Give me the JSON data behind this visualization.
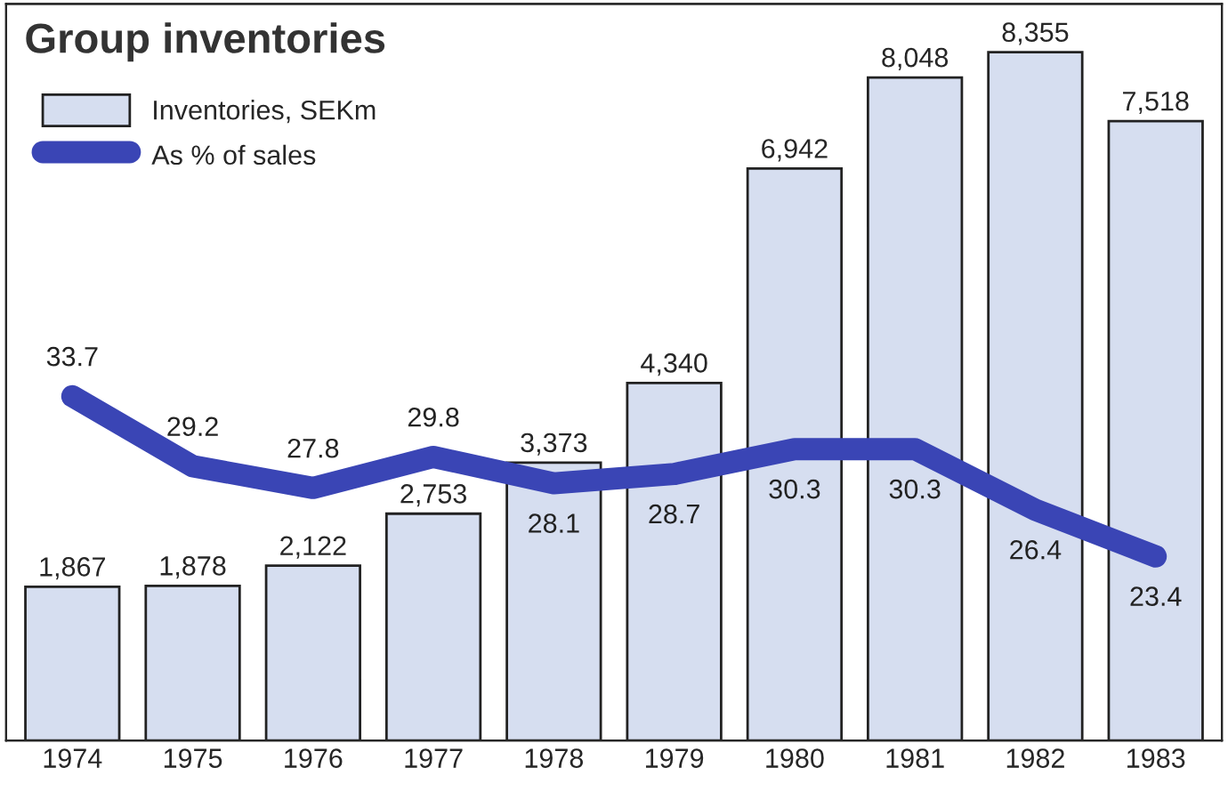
{
  "chart_data": {
    "type": "bar",
    "title": "Group inventories",
    "categories": [
      "1974",
      "1975",
      "1976",
      "1977",
      "1978",
      "1979",
      "1980",
      "1981",
      "1982",
      "1983"
    ],
    "series": [
      {
        "name": "Inventories, SEKm",
        "color": "#d6def0",
        "values": [
          1867,
          1878,
          2122,
          2753,
          3373,
          4340,
          6942,
          8048,
          8355,
          7518
        ],
        "value_labels": [
          "1,867",
          "1,878",
          "2,122",
          "2,753",
          "3,373",
          "4,340",
          "6,942",
          "8,048",
          "8,355",
          "7,518"
        ]
      },
      {
        "name": "As % of sales",
        "type": "line",
        "axis": "y2",
        "color": "#3a45b5",
        "values": [
          33.7,
          29.2,
          27.8,
          29.8,
          28.1,
          28.7,
          30.3,
          30.3,
          26.4,
          23.4
        ],
        "value_labels": [
          "33.7",
          "29.2",
          "27.8",
          "29.8",
          "28.1",
          "28.7",
          "30.3",
          "30.3",
          "26.4",
          "23.4"
        ]
      }
    ],
    "legend": "top left",
    "grid": false,
    "line_style": "solid"
  }
}
